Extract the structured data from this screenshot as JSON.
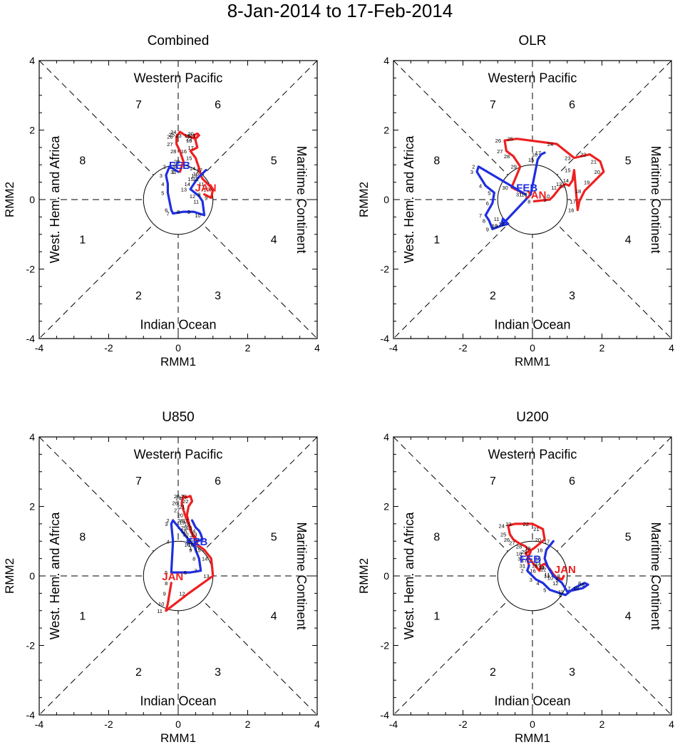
{
  "figure_title": "8-Jan-2014 to 17-Feb-2014",
  "colors": {
    "jan": "#ee2020",
    "feb": "#1f2fe0",
    "axes": "#000000"
  },
  "chart_data": [
    {
      "type": "line",
      "title": "Combined",
      "xlabel": "RMM1",
      "ylabel": "RMM2",
      "xlim": [
        -4,
        4
      ],
      "ylim": [
        -4,
        4
      ],
      "xticks": [
        "-4",
        "-2",
        "0",
        "2",
        "4"
      ],
      "yticks": [
        "-4",
        "-2",
        "0",
        "2",
        "4"
      ],
      "regions": {
        "top": "Western Pacific",
        "bottom": "Indian Ocean",
        "left": "West. Hem. and Africa",
        "right": "Maritime Continent"
      },
      "phases": [
        "1",
        "2",
        "3",
        "4",
        "5",
        "6",
        "7",
        "8"
      ],
      "series": [
        {
          "name": "JAN",
          "label": "JAN",
          "days": [
            "8",
            "9",
            "10",
            "11",
            "12",
            "13",
            "14",
            "15",
            "16",
            "17",
            "18",
            "19",
            "20",
            "21",
            "22",
            "23",
            "24",
            "25",
            "26",
            "27",
            "28",
            "29",
            "30",
            "31"
          ],
          "x": [
            0.75,
            0.95,
            1.0,
            0.85,
            0.7,
            0.65,
            0.6,
            0.5,
            0.35,
            0.55,
            0.5,
            0.45,
            0.55,
            0.6,
            0.5,
            0.2,
            0.05,
            0.0,
            -0.05,
            -0.05,
            0.05,
            0.15,
            0.1,
            0.05
          ],
          "y": [
            0.15,
            0.05,
            0.3,
            0.45,
            0.6,
            0.7,
            0.9,
            1.2,
            1.4,
            1.5,
            1.7,
            1.85,
            1.9,
            1.85,
            1.75,
            1.85,
            1.95,
            1.88,
            1.82,
            1.6,
            1.4,
            1.1,
            0.95,
            0.8
          ]
        },
        {
          "name": "FEB",
          "label": "FEB",
          "days": [
            "1",
            "2",
            "3",
            "4",
            "5",
            "6",
            "7",
            "8",
            "9",
            "10",
            "11",
            "12",
            "13",
            "14",
            "15",
            "16",
            "17"
          ],
          "x": [
            0.0,
            -0.25,
            -0.35,
            -0.3,
            -0.3,
            -0.2,
            -0.15,
            0.15,
            0.45,
            0.75,
            0.7,
            0.6,
            0.35,
            0.45,
            0.55,
            0.7,
            0.8
          ],
          "y": [
            0.8,
            0.95,
            0.7,
            0.45,
            0.2,
            -0.3,
            -0.4,
            -0.35,
            -0.35,
            -0.45,
            -0.05,
            0.1,
            0.3,
            0.45,
            0.6,
            0.75,
            0.85
          ]
        }
      ]
    },
    {
      "type": "line",
      "title": "OLR",
      "xlabel": "RMM1",
      "ylabel": "RMM2",
      "xlim": [
        -4,
        4
      ],
      "ylim": [
        -4,
        4
      ],
      "xticks": [
        "-4",
        "-2",
        "0",
        "2",
        "4"
      ],
      "yticks": [
        "-4",
        "-2",
        "0",
        "2",
        "4"
      ],
      "regions": {
        "top": "Western Pacific",
        "bottom": "Indian Ocean",
        "left": "West. Hem. and Africa",
        "right": "Maritime Continent"
      },
      "phases": [
        "1",
        "2",
        "3",
        "4",
        "5",
        "6",
        "7",
        "8"
      ],
      "series": [
        {
          "name": "JAN",
          "label": "JAN",
          "days": [
            "8",
            "9",
            "10",
            "11",
            "12",
            "13",
            "14",
            "15",
            "16",
            "17",
            "18",
            "19",
            "20",
            "21",
            "22",
            "23",
            "24",
            "25",
            "26",
            "27",
            "28",
            "29",
            "30",
            "31"
          ],
          "x": [
            0.05,
            0.5,
            0.6,
            0.8,
            0.95,
            1.05,
            1.15,
            1.2,
            1.3,
            1.35,
            1.5,
            1.75,
            2.05,
            1.95,
            1.65,
            1.2,
            0.7,
            -0.45,
            -0.8,
            -0.75,
            -0.55,
            -0.35,
            -0.6,
            -0.2
          ],
          "y": [
            -0.05,
            0.0,
            0.1,
            0.35,
            0.45,
            0.4,
            0.55,
            0.85,
            -0.3,
            -0.05,
            0.25,
            0.5,
            0.8,
            1.1,
            1.3,
            1.2,
            1.6,
            1.75,
            1.7,
            1.4,
            1.25,
            0.95,
            0.35,
            0.15
          ]
        },
        {
          "name": "FEB",
          "label": "FEB",
          "days": [
            "1",
            "2",
            "3",
            "4",
            "5",
            "6",
            "7",
            "8",
            "9",
            "10",
            "11",
            "12",
            "13",
            "14",
            "15",
            "16",
            "17"
          ],
          "x": [
            -0.2,
            -1.55,
            -1.6,
            -1.35,
            -1.1,
            -1.15,
            -1.35,
            -1.25,
            -1.15,
            -0.9,
            -0.85,
            -0.7,
            -0.9,
            -0.05,
            0.15,
            0.25,
            0.35
          ],
          "y": [
            0.15,
            0.95,
            0.8,
            0.4,
            0.2,
            -0.1,
            -0.45,
            -0.6,
            -0.85,
            -0.75,
            -0.55,
            -0.7,
            -0.75,
            0.15,
            1.15,
            1.3,
            1.35
          ]
        }
      ]
    },
    {
      "type": "line",
      "title": "U850",
      "xlabel": "RMM1",
      "ylabel": "RMM2",
      "xlim": [
        -4,
        4
      ],
      "ylim": [
        -4,
        4
      ],
      "xticks": [
        "-4",
        "-2",
        "0",
        "2",
        "4"
      ],
      "yticks": [
        "-4",
        "-2",
        "0",
        "2",
        "4"
      ],
      "regions": {
        "top": "Western Pacific",
        "bottom": "Indian Ocean",
        "left": "West. Hem. and Africa",
        "right": "Maritime Continent"
      },
      "phases": [
        "1",
        "2",
        "3",
        "4",
        "5",
        "6",
        "7",
        "8"
      ],
      "series": [
        {
          "name": "JAN",
          "label": "JAN",
          "days": [
            "8",
            "9",
            "10",
            "11",
            "12",
            "13",
            "14",
            "15",
            "16",
            "17",
            "18",
            "19",
            "20",
            "21",
            "22",
            "23",
            "24",
            "25",
            "26",
            "27",
            "28",
            "29",
            "30",
            "31"
          ],
          "x": [
            -0.2,
            -0.25,
            -0.3,
            -0.35,
            0.3,
            1.0,
            0.95,
            0.75,
            0.55,
            0.5,
            0.35,
            0.3,
            0.25,
            0.3,
            0.4,
            0.35,
            0.2,
            0.15,
            0.1,
            0.15,
            0.25,
            0.35,
            0.4,
            0.5
          ],
          "y": [
            -0.2,
            -0.5,
            -0.8,
            -1.0,
            -0.5,
            0.0,
            0.5,
            0.75,
            0.9,
            1.1,
            1.3,
            1.55,
            1.75,
            2.0,
            2.15,
            2.3,
            2.25,
            2.3,
            2.1,
            1.9,
            1.6,
            1.4,
            1.2,
            1.0
          ]
        },
        {
          "name": "FEB",
          "label": "FEB",
          "days": [
            "1",
            "2",
            "3",
            "4",
            "5",
            "6",
            "7",
            "8",
            "9",
            "10",
            "11",
            "12",
            "13",
            "14",
            "15",
            "16",
            "17"
          ],
          "x": [
            0.5,
            -0.15,
            -0.2,
            -0.15,
            -0.2,
            0.35,
            0.65,
            0.6,
            0.5,
            0.45,
            0.55,
            0.7,
            0.65,
            0.6,
            0.5,
            0.45,
            0.4
          ],
          "y": [
            0.8,
            1.6,
            1.5,
            1.0,
            0.1,
            0.1,
            0.15,
            0.5,
            0.75,
            0.9,
            1.0,
            1.05,
            1.2,
            1.3,
            1.4,
            1.5,
            1.6
          ]
        }
      ]
    },
    {
      "type": "line",
      "title": "U200",
      "xlabel": "RMM1",
      "ylabel": "RMM2",
      "xlim": [
        -4,
        4
      ],
      "ylim": [
        -4,
        4
      ],
      "xticks": [
        "-4",
        "-2",
        "0",
        "2",
        "4"
      ],
      "yticks": [
        "-4",
        "-2",
        "0",
        "2",
        "4"
      ],
      "regions": {
        "top": "Western Pacific",
        "bottom": "Indian Ocean",
        "left": "West. Hem. and Africa",
        "right": "Maritime Continent"
      },
      "phases": [
        "1",
        "2",
        "3",
        "4",
        "5",
        "6",
        "7",
        "8"
      ],
      "series": [
        {
          "name": "JAN",
          "label": "JAN",
          "days": [
            "8",
            "9",
            "10",
            "11",
            "12",
            "13",
            "14",
            "15",
            "16",
            "17",
            "18",
            "19",
            "20",
            "21",
            "22",
            "23",
            "24",
            "25",
            "26",
            "27",
            "28",
            "29",
            "30",
            "31"
          ],
          "x": [
            0.9,
            0.85,
            0.7,
            0.6,
            0.5,
            0.45,
            0.35,
            0.25,
            0.2,
            -0.05,
            -0.2,
            0.05,
            0.35,
            0.3,
            0.0,
            -0.5,
            -0.7,
            -0.65,
            -0.55,
            -0.4,
            -0.2,
            -0.05,
            -0.15,
            -0.1
          ],
          "y": [
            0.0,
            -0.1,
            -0.05,
            0.05,
            0.2,
            0.25,
            0.35,
            0.3,
            0.15,
            0.45,
            0.65,
            0.8,
            1.05,
            1.35,
            1.5,
            1.5,
            1.45,
            1.2,
            1.05,
            0.95,
            0.85,
            0.7,
            0.5,
            0.3
          ]
        },
        {
          "name": "FEB",
          "label": "FEB",
          "days": [
            "1",
            "2",
            "3",
            "4",
            "5",
            "6",
            "7",
            "8",
            "9",
            "10",
            "11",
            "12",
            "13",
            "14",
            "15",
            "16",
            "17"
          ],
          "x": [
            -0.1,
            -0.15,
            0.1,
            0.3,
            0.5,
            0.95,
            1.2,
            1.5,
            1.6,
            1.45,
            1.0,
            0.85,
            0.6,
            0.45,
            0.35,
            0.4,
            0.6
          ],
          "y": [
            0.3,
            0.15,
            -0.1,
            -0.2,
            -0.4,
            -0.55,
            -0.35,
            -0.2,
            -0.25,
            -0.35,
            -0.45,
            -0.2,
            0.0,
            0.25,
            0.5,
            0.75,
            1.0
          ]
        }
      ]
    }
  ]
}
